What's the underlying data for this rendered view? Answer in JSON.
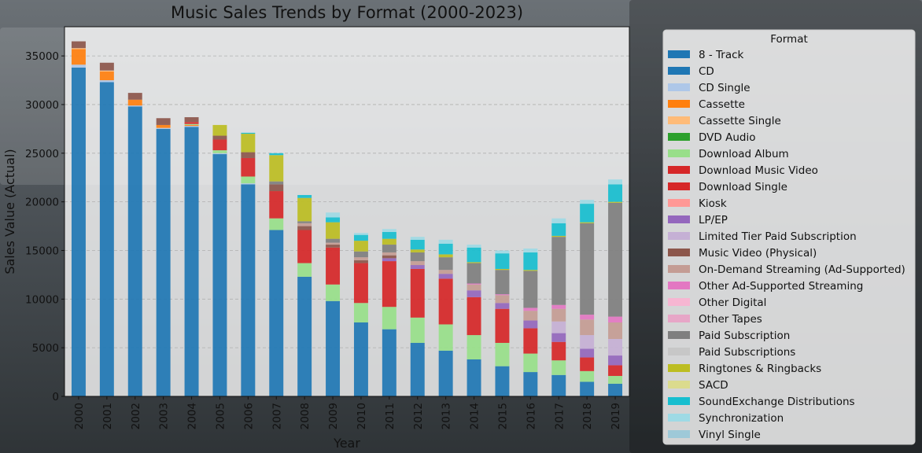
{
  "chart_data": {
    "type": "bar",
    "stacked": true,
    "title": "Music Sales Trends by Format (2000-2023)",
    "xlabel": "Year",
    "ylabel": "Sales Value (Actual)",
    "ylim": [
      0,
      38000
    ],
    "yticks": [
      0,
      5000,
      10000,
      15000,
      20000,
      25000,
      30000,
      35000
    ],
    "grid": "y-dashed",
    "legend_title": "Format",
    "legend_position": "right",
    "categories": [
      "2000",
      "2001",
      "2002",
      "2003",
      "2004",
      "2005",
      "2006",
      "2007",
      "2008",
      "2009",
      "2010",
      "2011",
      "2012",
      "2013",
      "2014",
      "2015",
      "2016",
      "2017",
      "2018",
      "2019"
    ],
    "series": [
      {
        "name": "8 - Track",
        "color": "#1f77b4",
        "values": [
          0,
          0,
          0,
          0,
          0,
          0,
          0,
          0,
          0,
          0,
          0,
          0,
          0,
          0,
          0,
          0,
          0,
          0,
          0,
          0
        ]
      },
      {
        "name": "CD",
        "color": "#1f77b4",
        "values": [
          33800,
          32300,
          29800,
          27500,
          27700,
          24900,
          21800,
          17100,
          12300,
          9800,
          7600,
          6900,
          5500,
          4700,
          3800,
          3100,
          2500,
          2200,
          1500,
          1300
        ]
      },
      {
        "name": "CD Single",
        "color": "#aec7e8",
        "values": [
          300,
          200,
          100,
          100,
          100,
          100,
          100,
          0,
          0,
          0,
          0,
          0,
          0,
          0,
          0,
          0,
          0,
          0,
          0,
          0
        ]
      },
      {
        "name": "Cassette",
        "color": "#ff7f0e",
        "values": [
          1600,
          900,
          600,
          300,
          100,
          0,
          0,
          0,
          0,
          0,
          0,
          0,
          0,
          0,
          0,
          0,
          0,
          0,
          0,
          0
        ]
      },
      {
        "name": "Cassette Single",
        "color": "#ffbb78",
        "values": [
          100,
          100,
          0,
          0,
          0,
          0,
          0,
          0,
          0,
          0,
          0,
          0,
          0,
          0,
          0,
          0,
          0,
          0,
          0,
          0
        ]
      },
      {
        "name": "DVD Audio",
        "color": "#2ca02c",
        "values": [
          0,
          0,
          0,
          0,
          0,
          0,
          0,
          0,
          0,
          0,
          0,
          0,
          0,
          0,
          0,
          0,
          0,
          0,
          0,
          0
        ]
      },
      {
        "name": "Download Album",
        "color": "#98df8a",
        "values": [
          0,
          0,
          0,
          0,
          100,
          300,
          700,
          1200,
          1400,
          1700,
          2000,
          2300,
          2600,
          2700,
          2500,
          2400,
          1900,
          1500,
          1100,
          800
        ]
      },
      {
        "name": "Download Music Video",
        "color": "#d62728",
        "values": [
          0,
          0,
          0,
          0,
          0,
          0,
          0,
          0,
          0,
          0,
          0,
          0,
          0,
          0,
          0,
          0,
          0,
          0,
          0,
          0
        ]
      },
      {
        "name": "Download Single",
        "color": "#d62728",
        "values": [
          0,
          0,
          0,
          0,
          200,
          1100,
          1900,
          2800,
          3400,
          3800,
          4100,
          4700,
          5000,
          4700,
          3900,
          3500,
          2600,
          1900,
          1400,
          1100
        ]
      },
      {
        "name": "Kiosk",
        "color": "#ff9896",
        "values": [
          0,
          0,
          0,
          0,
          0,
          0,
          0,
          0,
          0,
          0,
          0,
          0,
          0,
          0,
          0,
          0,
          0,
          0,
          0,
          0
        ]
      },
      {
        "name": "LP/EP",
        "color": "#9467bd",
        "values": [
          0,
          0,
          0,
          0,
          0,
          0,
          0,
          0,
          0,
          0,
          0,
          300,
          400,
          500,
          700,
          600,
          800,
          900,
          900,
          1000
        ]
      },
      {
        "name": "Limited Tier Paid Subscription",
        "color": "#c5b0d5",
        "values": [
          0,
          0,
          0,
          0,
          0,
          0,
          0,
          0,
          0,
          0,
          0,
          0,
          0,
          0,
          0,
          0,
          0,
          1200,
          1400,
          1700
        ]
      },
      {
        "name": "Music Video (Physical)",
        "color": "#8c564b",
        "values": [
          700,
          800,
          700,
          700,
          500,
          400,
          600,
          700,
          400,
          300,
          300,
          300,
          0,
          0,
          0,
          0,
          0,
          0,
          0,
          0
        ]
      },
      {
        "name": "On-Demand Streaming (Ad-Supported)",
        "color": "#c49c94",
        "values": [
          0,
          0,
          0,
          0,
          0,
          0,
          0,
          0,
          300,
          200,
          300,
          300,
          400,
          400,
          600,
          800,
          1000,
          1300,
          1600,
          1700
        ]
      },
      {
        "name": "Other Ad-Supported Streaming",
        "color": "#e377c2",
        "values": [
          0,
          0,
          0,
          0,
          0,
          0,
          0,
          0,
          0,
          0,
          0,
          0,
          0,
          0,
          100,
          100,
          300,
          400,
          500,
          600
        ]
      },
      {
        "name": "Other Digital",
        "color": "#f7b6d2",
        "values": [
          0,
          0,
          0,
          0,
          0,
          0,
          0,
          0,
          0,
          0,
          0,
          0,
          0,
          0,
          0,
          0,
          0,
          0,
          0,
          0
        ]
      },
      {
        "name": "Other Tapes",
        "color": "#e7a6c7",
        "values": [
          0,
          0,
          0,
          0,
          0,
          0,
          0,
          0,
          0,
          0,
          0,
          0,
          0,
          0,
          0,
          0,
          0,
          0,
          0,
          0
        ]
      },
      {
        "name": "Paid Subscription",
        "color": "#7f7f7f",
        "values": [
          0,
          0,
          0,
          0,
          0,
          0,
          0,
          300,
          200,
          400,
          600,
          800,
          900,
          1300,
          2100,
          2500,
          3800,
          7000,
          9400,
          11700
        ]
      },
      {
        "name": "Paid Subscriptions",
        "color": "#c7c7c7",
        "values": [
          0,
          0,
          0,
          0,
          0,
          0,
          0,
          0,
          0,
          0,
          0,
          0,
          0,
          0,
          0,
          0,
          0,
          0,
          0,
          0
        ]
      },
      {
        "name": "Ringtones & Ringbacks",
        "color": "#bcbd22",
        "values": [
          0,
          0,
          0,
          0,
          0,
          1100,
          1900,
          2700,
          2400,
          1700,
          1100,
          600,
          300,
          300,
          100,
          100,
          100,
          100,
          100,
          100
        ]
      },
      {
        "name": "SACD",
        "color": "#dbdb8d",
        "values": [
          0,
          0,
          0,
          0,
          0,
          0,
          0,
          0,
          0,
          0,
          0,
          0,
          0,
          0,
          0,
          0,
          0,
          0,
          0,
          0
        ]
      },
      {
        "name": "SoundExchange Distributions",
        "color": "#17becf",
        "values": [
          0,
          0,
          0,
          0,
          0,
          0,
          100,
          200,
          300,
          500,
          600,
          700,
          1000,
          1100,
          1500,
          1600,
          1800,
          1300,
          1900,
          1800
        ]
      },
      {
        "name": "Synchronization",
        "color": "#9edae5",
        "values": [
          0,
          0,
          0,
          0,
          0,
          0,
          0,
          0,
          0,
          500,
          200,
          300,
          300,
          400,
          300,
          300,
          400,
          500,
          400,
          500
        ]
      },
      {
        "name": "Vinyl Single",
        "color": "#9ec9d8",
        "values": [
          0,
          0,
          0,
          0,
          0,
          0,
          0,
          0,
          0,
          0,
          0,
          0,
          0,
          0,
          0,
          0,
          0,
          0,
          0,
          0
        ]
      }
    ]
  }
}
